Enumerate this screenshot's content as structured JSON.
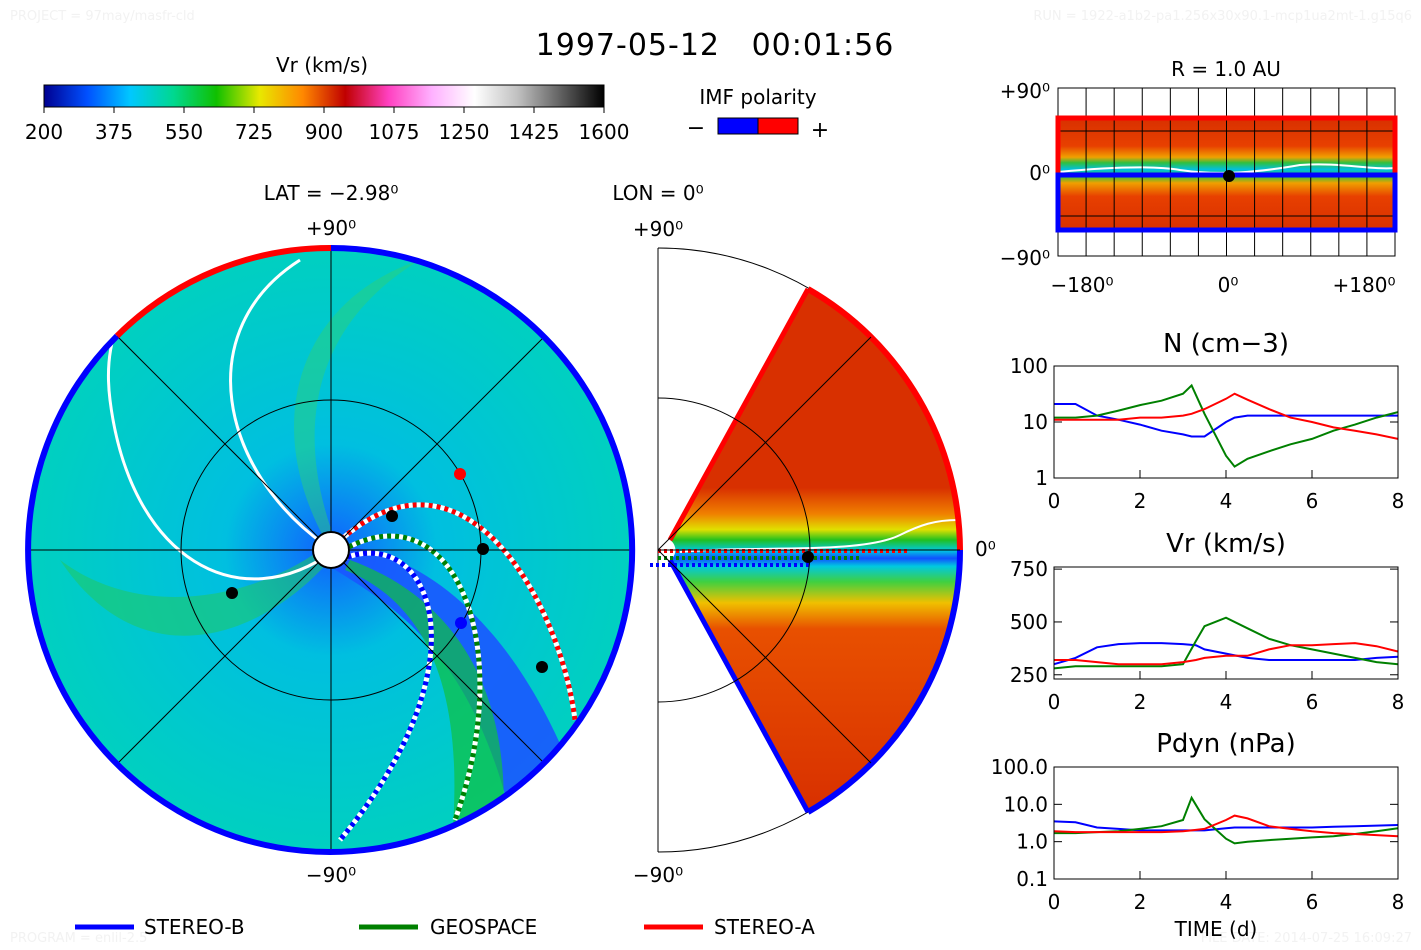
{
  "header": {
    "project": "PROJECT = 97may/masfr-cld",
    "run": "RUN = 1922-a1b2-pa1.256x30x90.1-mcp1ua2mt-1.g15q6",
    "program": "PROGRAM = enlil-2.5",
    "file_date": "FILE DATE: 2014-07-25 16:09:27",
    "timestamp": "1997-05-12   00:01:56"
  },
  "colorbar": {
    "title": "Vr (km/s)",
    "ticks": [
      "200",
      "375",
      "550",
      "725",
      "900",
      "1075",
      "1250",
      "1425",
      "1600"
    ],
    "stops": [
      "#000090",
      "#0050ff",
      "#00c8ff",
      "#00d890",
      "#10c000",
      "#e8e800",
      "#ff8800",
      "#c00000",
      "#ff40c0",
      "#ffb0ff",
      "#ffffff",
      "#c0c0c0",
      "#606060",
      "#000000"
    ]
  },
  "imf": {
    "title": "IMF polarity",
    "minus": "−",
    "plus": "+",
    "neg_color": "#0000ff",
    "pos_color": "#ff0000"
  },
  "equatorial_view": {
    "title": "LAT = −2.98⁰",
    "top_label": "+90⁰",
    "bottom_label": "−90⁰"
  },
  "meridional_view": {
    "title": "LON = 0⁰",
    "top_label": "+90⁰",
    "bottom_label": "−90⁰",
    "right_label": "0⁰"
  },
  "r_panel": {
    "title": "R = 1.0 AU",
    "y_labels": [
      "+90⁰",
      "0⁰",
      "−90⁰"
    ],
    "x_labels": [
      "−180⁰",
      "0⁰",
      "+180⁰"
    ]
  },
  "legend": [
    {
      "name": "STEREO-B",
      "color": "#0000ff"
    },
    {
      "name": "GEOSPACE",
      "color": "#008000"
    },
    {
      "name": "STEREO-A",
      "color": "#ff0000"
    }
  ],
  "chart_data": [
    {
      "type": "line",
      "title": "N (cm−3)",
      "yscale": "log",
      "ylim": [
        1,
        100
      ],
      "yticks": [
        1,
        10,
        100
      ],
      "ytick_labels": [
        "1",
        "10",
        "100"
      ],
      "xlim": [
        0,
        8
      ],
      "xticks": [
        "0",
        "2",
        "4",
        "6",
        "8"
      ],
      "x": [
        0,
        0.5,
        1,
        1.5,
        2,
        2.5,
        3,
        3.2,
        3.5,
        4,
        4.2,
        4.5,
        5,
        5.5,
        6,
        6.5,
        7,
        7.5,
        8
      ],
      "series": [
        {
          "color": "#0000ff",
          "values": [
            21,
            21,
            13,
            11,
            9,
            7,
            6,
            5.5,
            5.5,
            10,
            12,
            13,
            13,
            13,
            13,
            13,
            13,
            13,
            13
          ]
        },
        {
          "color": "#008000",
          "values": [
            12,
            12,
            13,
            16,
            20,
            24,
            32,
            45,
            14,
            2.5,
            1.6,
            2.2,
            3,
            4,
            5,
            7,
            9,
            12,
            15
          ]
        },
        {
          "color": "#ff0000",
          "values": [
            11,
            11,
            11,
            11,
            12,
            12,
            13,
            14,
            17,
            26,
            32,
            25,
            17,
            12,
            10,
            8,
            7,
            6,
            5
          ]
        }
      ]
    },
    {
      "type": "line",
      "title": "Vr (km/s)",
      "ylim": [
        230,
        760
      ],
      "yticks": [
        250,
        500,
        750
      ],
      "ytick_labels": [
        "250",
        "500",
        "750"
      ],
      "xlim": [
        0,
        8
      ],
      "xticks": [
        "0",
        "2",
        "4",
        "6",
        "8"
      ],
      "x": [
        0,
        0.5,
        1,
        1.5,
        2,
        2.5,
        3,
        3.3,
        3.5,
        4,
        4.5,
        5,
        5.5,
        6,
        6.5,
        7,
        7.5,
        8
      ],
      "series": [
        {
          "color": "#0000ff",
          "values": [
            300,
            330,
            380,
            395,
            400,
            400,
            395,
            390,
            370,
            350,
            330,
            320,
            320,
            320,
            320,
            320,
            330,
            335
          ]
        },
        {
          "color": "#008000",
          "values": [
            280,
            290,
            290,
            290,
            290,
            290,
            300,
            410,
            480,
            520,
            470,
            420,
            390,
            370,
            350,
            330,
            310,
            300
          ]
        },
        {
          "color": "#ff0000",
          "values": [
            320,
            320,
            310,
            300,
            300,
            300,
            310,
            320,
            330,
            340,
            340,
            370,
            390,
            390,
            395,
            400,
            385,
            360
          ]
        }
      ]
    },
    {
      "type": "line",
      "title": "Pdyn (nPa)",
      "yscale": "log",
      "ylim": [
        0.1,
        100
      ],
      "yticks": [
        0.1,
        1,
        10,
        100
      ],
      "ytick_labels": [
        "0.1",
        "1.0",
        "10.0",
        "100.0"
      ],
      "xlim": [
        0,
        8
      ],
      "xticks": [
        "0",
        "2",
        "4",
        "6",
        "8"
      ],
      "xlabel": "TIME (d)",
      "x": [
        0,
        0.5,
        1,
        1.5,
        2,
        2.5,
        3,
        3.2,
        3.5,
        4,
        4.2,
        4.5,
        5,
        5.5,
        6,
        6.5,
        7,
        7.5,
        8
      ],
      "series": [
        {
          "color": "#0000ff",
          "values": [
            3.5,
            3.3,
            2.4,
            2.2,
            2,
            2,
            2,
            2,
            2,
            2.3,
            2.4,
            2.4,
            2.4,
            2.4,
            2.4,
            2.5,
            2.6,
            2.7,
            2.8
          ]
        },
        {
          "color": "#008000",
          "values": [
            1.7,
            1.7,
            1.8,
            1.9,
            2.2,
            2.6,
            3.8,
            15,
            4,
            1.2,
            0.9,
            1,
            1.1,
            1.2,
            1.3,
            1.4,
            1.6,
            1.9,
            2.3
          ]
        },
        {
          "color": "#ff0000",
          "values": [
            1.9,
            1.8,
            1.8,
            1.8,
            1.8,
            1.8,
            1.9,
            2,
            2.2,
            3.8,
            5,
            4.2,
            2.6,
            2.2,
            1.9,
            1.7,
            1.6,
            1.5,
            1.4
          ]
        }
      ]
    }
  ]
}
